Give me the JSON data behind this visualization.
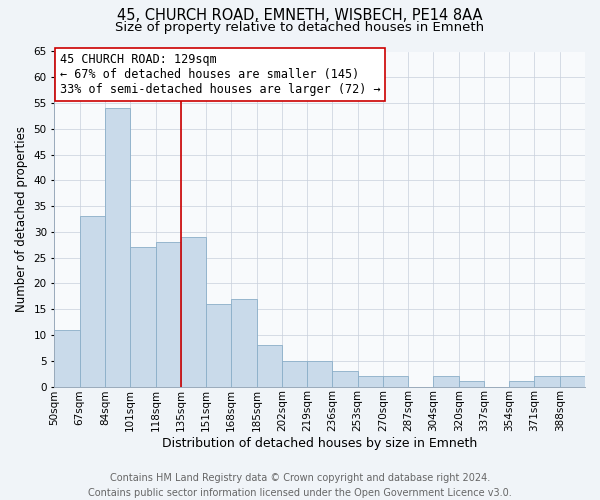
{
  "title": "45, CHURCH ROAD, EMNETH, WISBECH, PE14 8AA",
  "subtitle": "Size of property relative to detached houses in Emneth",
  "xlabel": "Distribution of detached houses by size in Emneth",
  "ylabel": "Number of detached properties",
  "bin_labels": [
    "50sqm",
    "67sqm",
    "84sqm",
    "101sqm",
    "118sqm",
    "135sqm",
    "151sqm",
    "168sqm",
    "185sqm",
    "202sqm",
    "219sqm",
    "236sqm",
    "253sqm",
    "270sqm",
    "287sqm",
    "304sqm",
    "320sqm",
    "337sqm",
    "354sqm",
    "371sqm",
    "388sqm"
  ],
  "bar_values": [
    11,
    33,
    54,
    27,
    28,
    29,
    16,
    17,
    8,
    5,
    5,
    3,
    2,
    2,
    0,
    2,
    1,
    0,
    1,
    2,
    2
  ],
  "bar_color": "#c9daea",
  "bar_edge_color": "#8aaec8",
  "vline_x": 5,
  "vline_color": "#cc0000",
  "annotation_line1": "45 CHURCH ROAD: 129sqm",
  "annotation_line2": "← 67% of detached houses are smaller (145)",
  "annotation_line3": "33% of semi-detached houses are larger (72) →",
  "ylim": [
    0,
    65
  ],
  "yticks": [
    0,
    5,
    10,
    15,
    20,
    25,
    30,
    35,
    40,
    45,
    50,
    55,
    60,
    65
  ],
  "footer_line1": "Contains HM Land Registry data © Crown copyright and database right 2024.",
  "footer_line2": "Contains public sector information licensed under the Open Government Licence v3.0.",
  "title_fontsize": 10.5,
  "subtitle_fontsize": 9.5,
  "xlabel_fontsize": 9,
  "ylabel_fontsize": 8.5,
  "tick_fontsize": 7.5,
  "annotation_fontsize": 8.5,
  "footer_fontsize": 7,
  "background_color": "#f0f4f8",
  "plot_background_color": "#f8fafc",
  "grid_color": "#c8d0dc"
}
